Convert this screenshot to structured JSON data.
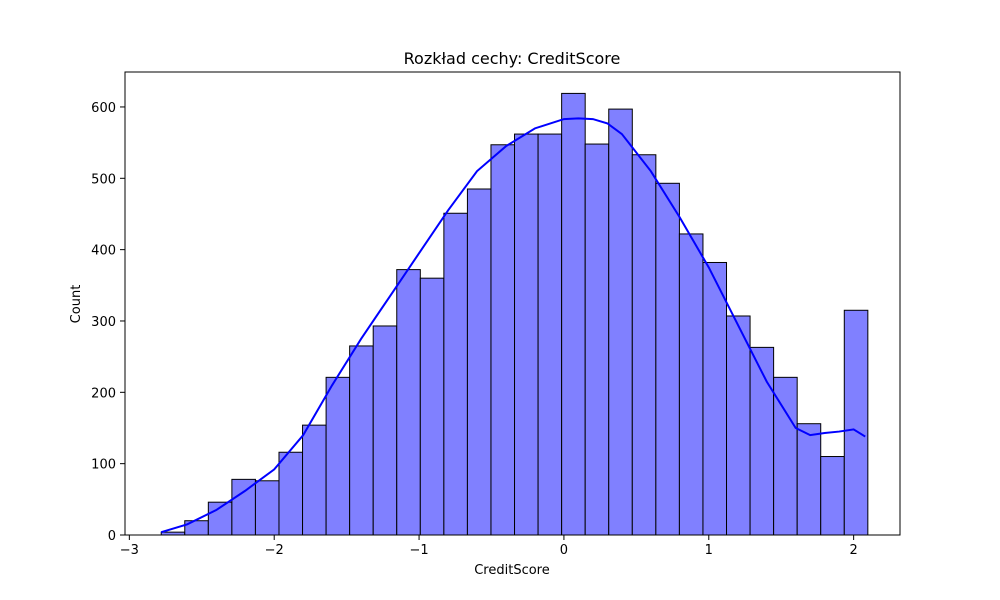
{
  "chart_data": {
    "type": "bar",
    "title": "Rozkład cechy: CreditScore",
    "xlabel": "CreditScore",
    "ylabel": "Count",
    "xlim": [
      -3.03,
      2.32
    ],
    "ylim": [
      0,
      649
    ],
    "x_ticks": [
      -3,
      -2,
      -1,
      0,
      1,
      2
    ],
    "x_tick_labels": [
      "−3",
      "−2",
      "−1",
      "0",
      "1",
      "2"
    ],
    "y_ticks": [
      0,
      100,
      200,
      300,
      400,
      500,
      600
    ],
    "y_tick_labels": [
      "0",
      "100",
      "200",
      "300",
      "400",
      "500",
      "600"
    ],
    "grid": false,
    "bin_start": -2.78,
    "bin_width": 0.1626,
    "values": [
      4,
      20,
      46,
      78,
      76,
      116,
      154,
      221,
      265,
      293,
      372,
      360,
      451,
      485,
      547,
      562,
      562,
      619,
      548,
      597,
      533,
      493,
      422,
      382,
      307,
      263,
      221,
      156,
      110,
      315
    ],
    "kde": {
      "x": [
        -2.78,
        -2.6,
        -2.4,
        -2.2,
        -2.0,
        -1.8,
        -1.6,
        -1.4,
        -1.2,
        -1.0,
        -0.8,
        -0.6,
        -0.4,
        -0.2,
        0.0,
        0.1,
        0.2,
        0.3,
        0.4,
        0.6,
        0.8,
        1.0,
        1.2,
        1.4,
        1.6,
        1.7,
        1.8,
        1.9,
        2.0,
        2.08
      ],
      "y": [
        4,
        15,
        35,
        62,
        92,
        140,
        210,
        275,
        335,
        395,
        455,
        510,
        545,
        570,
        583,
        584,
        583,
        577,
        562,
        510,
        445,
        375,
        295,
        215,
        150,
        140,
        143,
        145,
        148,
        138
      ]
    },
    "colors": {
      "bar_fill": "#8080ff",
      "bar_edge": "#000000",
      "kde_line": "#0000ff"
    }
  }
}
